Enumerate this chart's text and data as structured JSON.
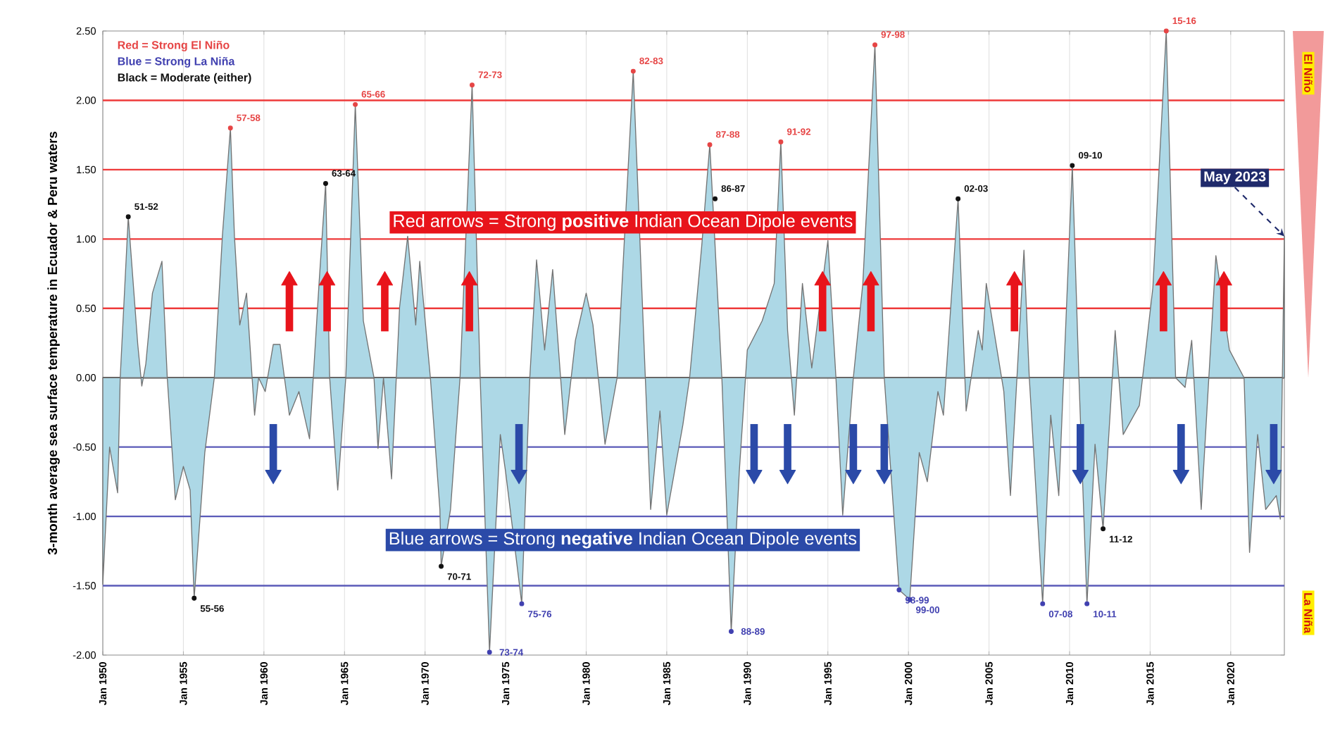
{
  "chart_data": {
    "type": "area",
    "ylabel": "3-month average sea surface temperature in Ecuador & Peru waters",
    "xlim": [
      "1950-01",
      "2023-05"
    ],
    "ylim": [
      -2,
      2.5
    ],
    "yticks": [
      {
        "value": -2,
        "label": "-2.00"
      },
      {
        "value": -1.5,
        "label": "-1.50"
      },
      {
        "value": -1,
        "label": "-1.00"
      },
      {
        "value": -0.5,
        "label": "-0.50"
      },
      {
        "value": 0,
        "label": "0.00"
      },
      {
        "value": 0.5,
        "label": "0.50"
      },
      {
        "value": 1,
        "label": "1.00"
      },
      {
        "value": 1.5,
        "label": "1.50"
      },
      {
        "value": 2,
        "label": "2.00"
      },
      {
        "value": 2.5,
        "label": "2.50"
      }
    ],
    "xticks": [
      {
        "value": "1950-01",
        "label": "Jan 1950"
      },
      {
        "value": "1955-01",
        "label": "Jan 1955"
      },
      {
        "value": "1960-01",
        "label": "Jan 1960"
      },
      {
        "value": "1965-01",
        "label": "Jan 1965"
      },
      {
        "value": "1970-01",
        "label": "Jan 1970"
      },
      {
        "value": "1975-01",
        "label": "Jan 1975"
      },
      {
        "value": "1980-01",
        "label": "Jan 1980"
      },
      {
        "value": "1985-01",
        "label": "Jan 1985"
      },
      {
        "value": "1990-01",
        "label": "Jan 1990"
      },
      {
        "value": "1995-01",
        "label": "Jan 1995"
      },
      {
        "value": "2000-01",
        "label": "Jan 2000"
      },
      {
        "value": "2005-01",
        "label": "Jan 2005"
      },
      {
        "value": "2010-01",
        "label": "Jan 2010"
      },
      {
        "value": "2015-01",
        "label": "Jan 2015"
      },
      {
        "value": "2020-01",
        "label": "Jan 2020"
      }
    ],
    "grid": "x",
    "legend": "top left",
    "ref_lines": [
      {
        "axis": "y",
        "value": 2,
        "color": "#ee3a3a"
      },
      {
        "axis": "y",
        "value": 1.5,
        "color": "#ee3a3a"
      },
      {
        "axis": "y",
        "value": 1,
        "color": "#ee3a3a"
      },
      {
        "axis": "y",
        "value": 0.5,
        "color": "#ee3a3a"
      },
      {
        "axis": "y",
        "value": 0,
        "color": "#444444"
      },
      {
        "axis": "y",
        "value": -0.5,
        "color": "#5a5ab8"
      },
      {
        "axis": "y",
        "value": -1,
        "color": "#5a5ab8"
      },
      {
        "axis": "y",
        "value": -1.5,
        "color": "#5a5ab8"
      }
    ],
    "annotations": [
      {
        "text": "May 2023",
        "x": "2023-05",
        "y": 1.02
      },
      "El Niño",
      "La Niña"
    ],
    "series": [
      {
        "color": "#add8e6",
        "x": [
          "1950-01",
          "1950-06",
          "1950-12",
          "1951-02",
          "1951-08",
          "1952-03",
          "1952-06",
          "1952-09",
          "1953-02",
          "1953-09",
          "1954-01",
          "1954-07",
          "1955-01",
          "1955-06",
          "1955-09",
          "1956-05",
          "1956-12",
          "1957-06",
          "1957-12",
          "1958-03",
          "1958-07",
          "1958-12",
          "1959-06",
          "1959-09",
          "1960-02",
          "1960-08",
          "1961-01",
          "1961-08",
          "1962-03",
          "1962-11",
          "1963-06",
          "1963-11",
          "1964-02",
          "1964-08",
          "1965-02",
          "1965-09",
          "1966-03",
          "1966-11",
          "1967-02",
          "1967-06",
          "1967-12",
          "1968-06",
          "1968-12",
          "1969-06",
          "1969-09",
          "1970-05",
          "1970-12",
          "1971-01",
          "1971-08",
          "1972-03",
          "1972-12",
          "1973-06",
          "1974-01",
          "1974-09",
          "1975-01",
          "1976-01",
          "1976-07",
          "1976-12",
          "1977-06",
          "1977-12",
          "1978-09",
          "1979-05",
          "1980-01",
          "1980-06",
          "1981-03",
          "1981-12",
          "1982-12",
          "1983-09",
          "1984-01",
          "1984-08",
          "1985-01",
          "1986-01",
          "1986-06",
          "1987-03",
          "1987-09",
          "1988-01",
          "1988-06",
          "1989-01",
          "1989-07",
          "1990-01",
          "1990-12",
          "1991-09",
          "1992-02",
          "1992-07",
          "1992-12",
          "1993-06",
          "1994-01",
          "1995-01",
          "1995-07",
          "1995-12",
          "1996-08",
          "1997-03",
          "1997-12",
          "1998-07",
          "1999-06",
          "2000-02",
          "2000-09",
          "2001-03",
          "2001-11",
          "2002-03",
          "2003-02",
          "2003-08",
          "2004-05",
          "2004-08",
          "2004-11",
          "2005-12",
          "2006-05",
          "2007-03",
          "2007-07",
          "2008-05",
          "2008-11",
          "2009-05",
          "2010-03",
          "2010-08",
          "2011-02",
          "2011-08",
          "2012-02",
          "2012-11",
          "2013-05",
          "2014-05",
          "2014-09",
          "2015-03",
          "2016-01",
          "2016-08",
          "2017-03",
          "2017-08",
          "2018-03",
          "2019-02",
          "2019-12",
          "2020-11",
          "2021-03",
          "2021-09",
          "2022-03",
          "2022-11",
          "2023-02",
          "2023-05"
        ],
        "values": [
          -1.49,
          -0.5,
          -0.83,
          0,
          1.16,
          0.24,
          -0.06,
          0.1,
          0.61,
          0.84,
          0,
          -0.88,
          -0.64,
          -0.81,
          -1.59,
          -0.54,
          0,
          1.02,
          1.8,
          1.02,
          0.38,
          0.61,
          -0.27,
          0,
          -0.1,
          0.24,
          0.24,
          -0.27,
          -0.1,
          -0.44,
          0.68,
          1.4,
          0,
          -0.81,
          0,
          1.97,
          0.41,
          0,
          -0.51,
          0,
          -0.73,
          0.51,
          1.02,
          0.38,
          0.84,
          0,
          -0.95,
          -1.36,
          -0.95,
          0,
          2.11,
          0,
          -1.98,
          -0.41,
          -0.68,
          -1.63,
          0,
          0.85,
          0.2,
          0.78,
          -0.41,
          0.27,
          0.61,
          0.38,
          -0.48,
          0,
          2.21,
          0,
          -0.95,
          -0.24,
          -0.99,
          -0.34,
          0,
          0.95,
          1.68,
          0.95,
          0,
          -1.83,
          -0.68,
          0.2,
          0.41,
          0.68,
          1.7,
          0.34,
          -0.27,
          0.68,
          0.07,
          0.99,
          0,
          -0.99,
          0,
          0.68,
          2.4,
          0,
          -1.53,
          -1.6,
          -0.54,
          -0.75,
          -0.1,
          -0.27,
          1.29,
          -0.24,
          0.34,
          0.2,
          0.68,
          -0.1,
          -0.85,
          0.92,
          0,
          -1.63,
          -0.27,
          -0.85,
          1.53,
          0,
          -1.63,
          -0.48,
          -1.09,
          0.34,
          -0.41,
          -0.2,
          0.14,
          0.65,
          2.5,
          0,
          -0.07,
          0.27,
          -0.95,
          0.88,
          0.2,
          0,
          -1.26,
          -0.41,
          -0.95,
          -0.85,
          -1.02,
          1.02
        ]
      },
      {
        "type": "scatter",
        "marker": "triangle",
        "name": "Red arrows = Strong **positive** Indian Ocean Dipole events",
        "color": "#e8141b",
        "x": [
          "1961-08",
          "1963-12",
          "1967-07",
          "1972-10",
          "1994-09",
          "1997-09",
          "2006-08",
          "2015-11",
          "2019-08"
        ],
        "values": [
          0.7,
          0.7,
          0.7,
          0.7,
          0.7,
          0.7,
          0.7,
          0.7,
          0.7
        ]
      },
      {
        "type": "scatter",
        "marker": "triangle",
        "name": "Blue arrows = Strong **negative** Indian Ocean Dipole events",
        "color": "#2b4aa8",
        "x": [
          "1960-08",
          "1975-11",
          "1990-06",
          "1992-07",
          "1996-08",
          "1998-07",
          "2010-09",
          "2016-12",
          "2022-09"
        ],
        "values": [
          -0.7,
          -0.7,
          -0.7,
          -0.7,
          -0.7,
          -0.7,
          -0.7,
          -0.7,
          -0.7
        ]
      },
      {
        "type": "scatter",
        "marker": "circle",
        "name": "Red = Strong El Niño",
        "color": "#e64545",
        "x": [
          "1957-12",
          "1965-09",
          "1972-12",
          "1982-12",
          "1987-09",
          "1992-02",
          "1997-12",
          "2016-01"
        ],
        "values": [
          1.8,
          1.97,
          2.11,
          2.21,
          1.68,
          1.7,
          2.4,
          2.5
        ],
        "value_labels": [
          "57-58",
          "65-66",
          "72-73",
          "82-83",
          "87-88",
          "91-92",
          "97-98",
          "15-16"
        ]
      },
      {
        "type": "scatter",
        "marker": "circle",
        "name": "Blue = Strong La Niña",
        "color": "#4040b0",
        "x": [
          "1974-01",
          "1976-01",
          "1989-01",
          "1999-06",
          "2000-02",
          "2008-05",
          "2011-02"
        ],
        "values": [
          -1.98,
          -1.63,
          -1.83,
          -1.53,
          -1.6,
          -1.63,
          -1.63
        ],
        "value_labels": [
          "73-74",
          "75-76",
          "88-89",
          "98-99",
          "99-00",
          "07-08",
          "10-11"
        ]
      },
      {
        "type": "scatter",
        "marker": "circle",
        "name": "Black = Moderate (either)",
        "color": "#111111",
        "x": [
          "1951-08",
          "1955-09",
          "1963-11",
          "1971-01",
          "1988-01",
          "2003-02",
          "2010-03",
          "2012-02"
        ],
        "values": [
          1.16,
          -1.59,
          1.4,
          -1.36,
          1.29,
          1.29,
          1.53,
          -1.09
        ],
        "value_labels": [
          "51-52",
          "55-56",
          "63-64",
          "70-71",
          "86-87",
          "02-03",
          "09-10",
          "11-12"
        ]
      }
    ]
  }
}
